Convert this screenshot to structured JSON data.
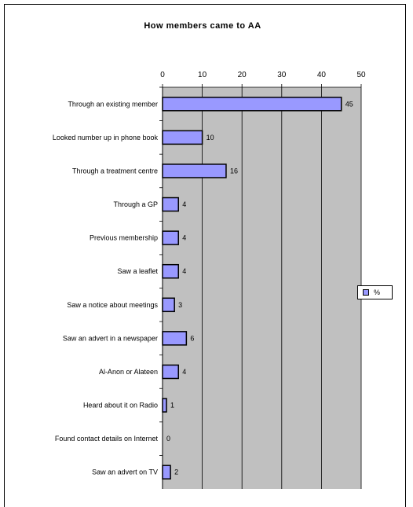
{
  "chart_data": {
    "type": "bar",
    "orientation": "horizontal",
    "title": "How members came to AA",
    "categories": [
      "Through an existing member",
      "Looked number up in phone book",
      "Through a treatment centre",
      "Through a GP",
      "Previous membership",
      "Saw a leaflet",
      "Saw a notice about meetings",
      "Saw an advert in a newspaper",
      "Al-Anon or Alateen",
      "Heard about it on Radio",
      "Found contact details on Internet",
      "Saw an advert on TV"
    ],
    "series": [
      {
        "name": "%",
        "values": [
          45,
          10,
          16,
          4,
          4,
          4,
          3,
          6,
          4,
          1,
          0,
          2
        ]
      }
    ],
    "xlim": [
      0,
      50
    ],
    "xticks": [
      "0",
      "10",
      "20",
      "30",
      "40",
      "50"
    ],
    "grid": true,
    "legend": "right",
    "colors": {
      "bar": "#9999ff",
      "plot_bg": "#c0c0c0",
      "bar_stroke": "#000000"
    }
  }
}
